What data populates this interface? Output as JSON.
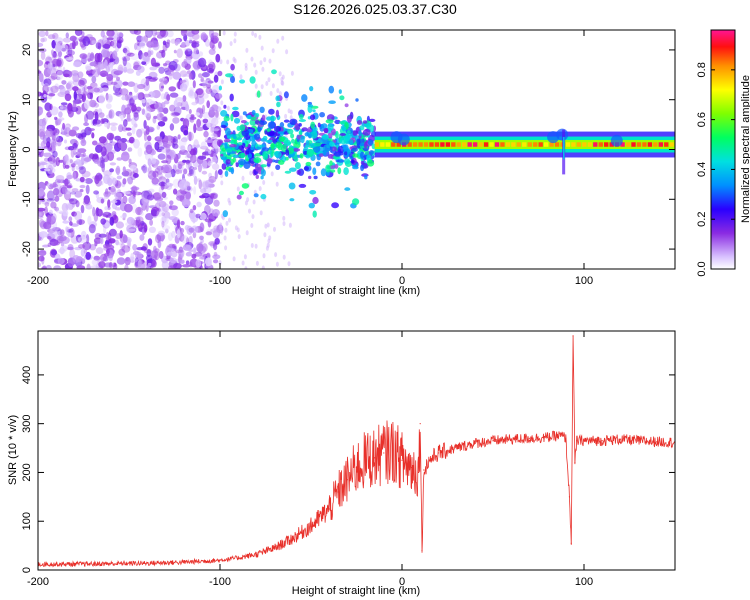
{
  "title": "S126.2026.025.03.37.C30",
  "chart_data": [
    {
      "type": "heatmap",
      "name": "spectrogram",
      "xlabel": "Height of straight line (km)",
      "ylabel": "Frequency (Hz)",
      "xlim": [
        -200,
        150
      ],
      "ylim": [
        -24,
        24
      ],
      "xticks": [
        -200,
        -100,
        0,
        100
      ],
      "yticks": [
        -20,
        -10,
        0,
        10,
        20
      ],
      "xtick_labels": [
        "-200",
        "-100",
        "0",
        "100"
      ],
      "ytick_labels": [
        "-20",
        "-10",
        "0",
        "10",
        "20"
      ],
      "colorbar": {
        "label": "Normalized spectral amplitude",
        "range": [
          0,
          0.96
        ],
        "ticks": [
          0.0,
          0.2,
          0.4,
          0.6,
          0.8
        ],
        "tick_labels": [
          "0.0",
          "0.2",
          "0.4",
          "0.6",
          "0.8"
        ]
      },
      "features": [
        {
          "region": "noise",
          "x_range": [
            -200,
            -100
          ],
          "amplitude": 0.1
        },
        {
          "region": "transition",
          "x_range": [
            -100,
            -15
          ],
          "amplitude": 0.25
        },
        {
          "region": "carrier",
          "x_range": [
            -15,
            150
          ],
          "frequency_hz": 1,
          "amplitude": 0.9
        }
      ]
    },
    {
      "type": "line",
      "name": "snr",
      "xlabel": "Height of straight line (km)",
      "ylabel": "SNR (10 * v/v)",
      "xlim": [
        -200,
        150
      ],
      "ylim": [
        0,
        490
      ],
      "xticks": [
        -200,
        -100,
        0,
        100
      ],
      "yticks": [
        0,
        100,
        200,
        300,
        400
      ],
      "xtick_labels": [
        "-200",
        "-100",
        "0",
        "100"
      ],
      "ytick_labels": [
        "0",
        "100",
        "200",
        "300",
        "400"
      ],
      "series": [
        {
          "name": "SNR",
          "color": "#e8302a",
          "x": [
            -200,
            -180,
            -160,
            -140,
            -120,
            -100,
            -90,
            -80,
            -70,
            -60,
            -50,
            -40,
            -35,
            -30,
            -25,
            -20,
            -15,
            -10,
            -5,
            0,
            5,
            9,
            10,
            11,
            12,
            15,
            20,
            30,
            40,
            50,
            60,
            70,
            80,
            85,
            88,
            90,
            92,
            93,
            94,
            95,
            96,
            100,
            110,
            120,
            130,
            140,
            150
          ],
          "values": [
            12,
            12,
            13,
            14,
            16,
            20,
            25,
            32,
            45,
            65,
            90,
            125,
            160,
            185,
            210,
            225,
            230,
            240,
            245,
            225,
            210,
            200,
            300,
            40,
            205,
            225,
            240,
            250,
            260,
            265,
            268,
            270,
            272,
            275,
            275,
            270,
            150,
            55,
            480,
            220,
            265,
            265,
            265,
            268,
            265,
            263,
            262
          ]
        }
      ]
    }
  ]
}
